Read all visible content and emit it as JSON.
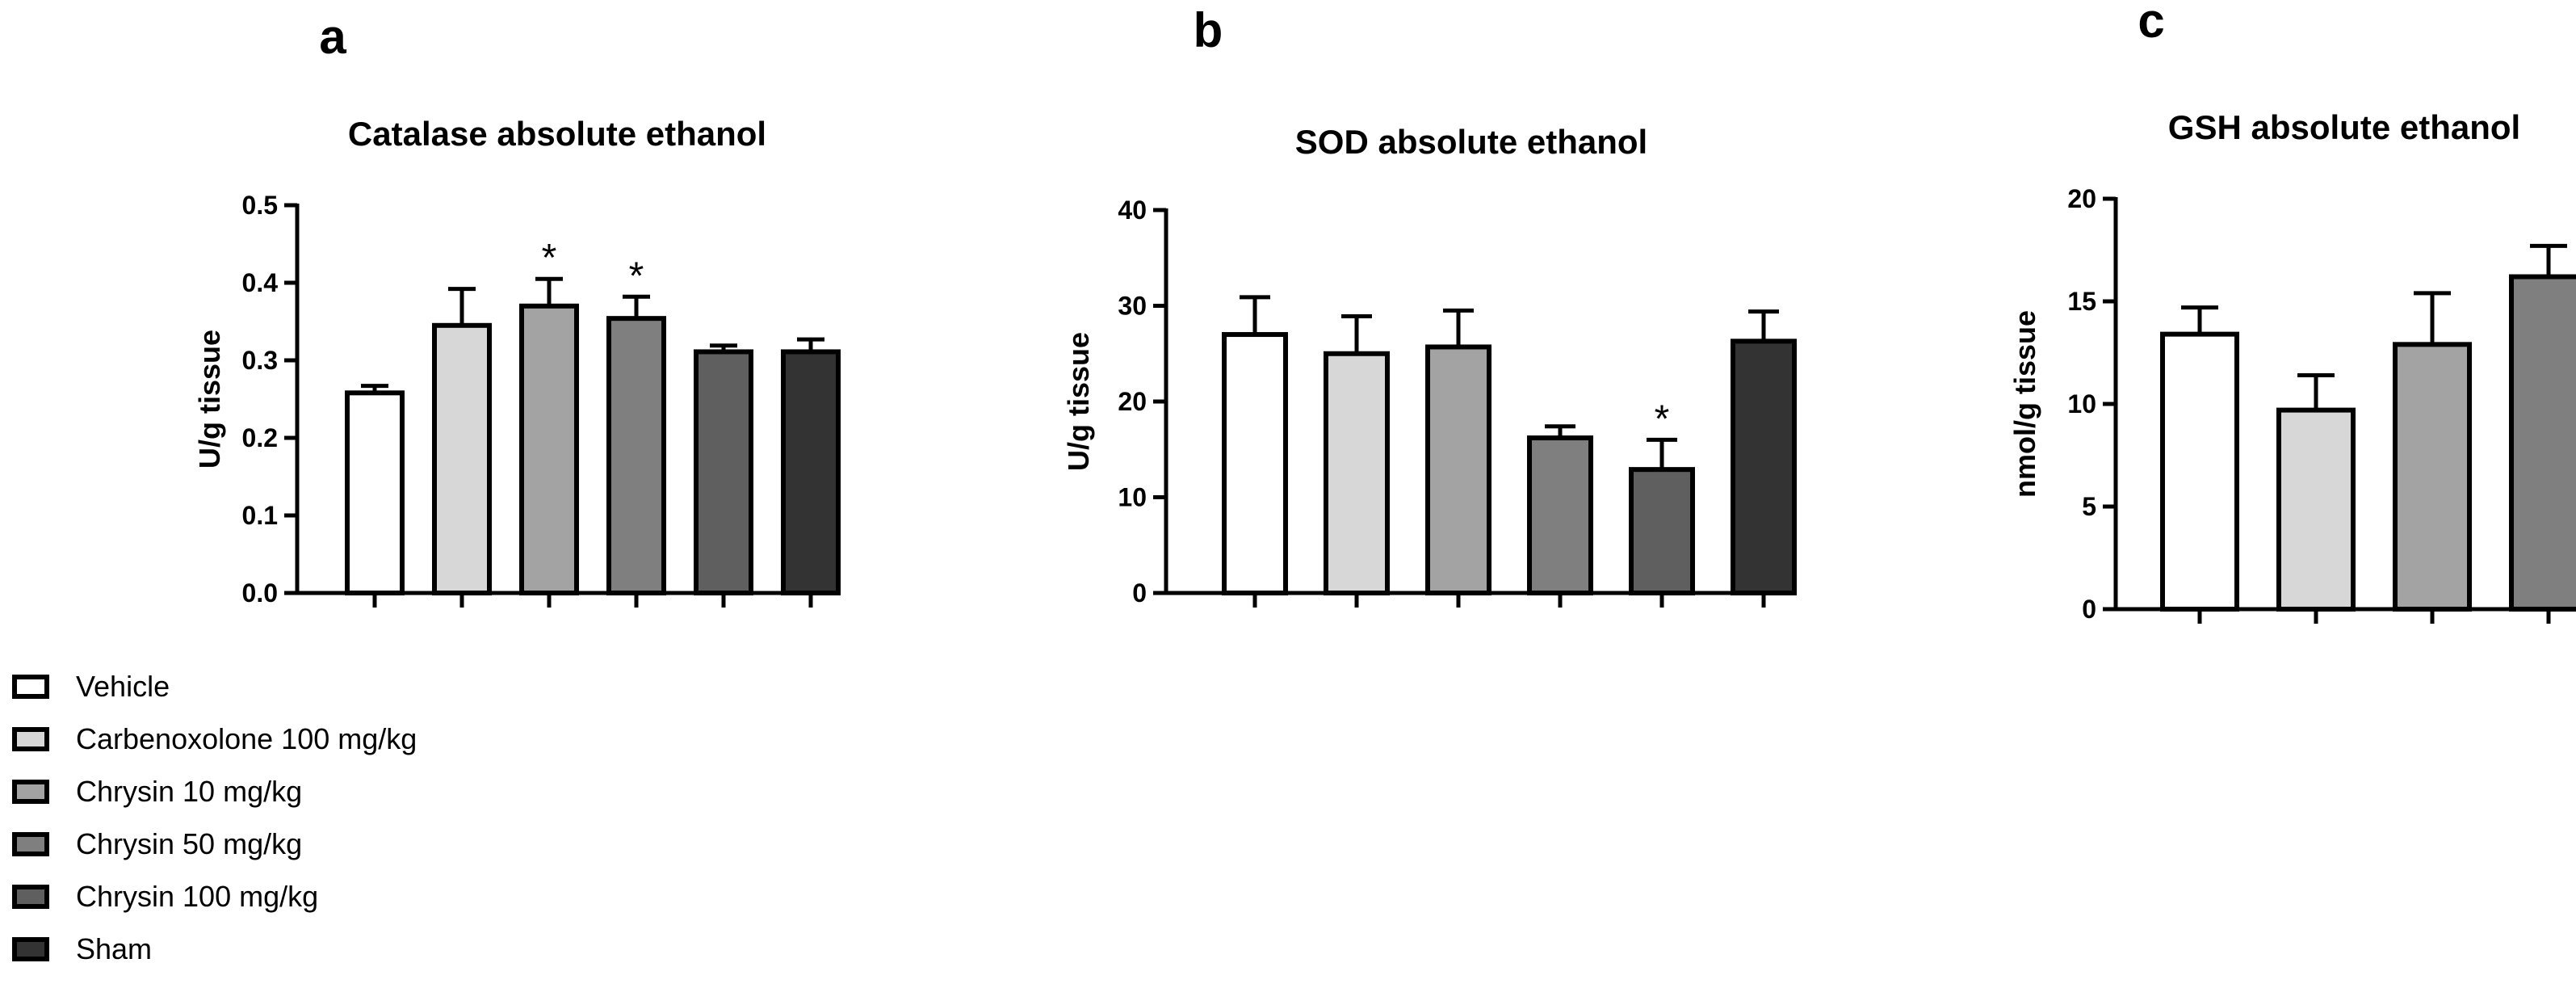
{
  "legend": {
    "entries": [
      {
        "label": "Vehicle",
        "color": "#ffffff"
      },
      {
        "label": "Carbenoxolone 100 mg/kg",
        "color": "#d7d7d7"
      },
      {
        "label": "Chrysin 10 mg/kg",
        "color": "#a3a3a3"
      },
      {
        "label": "Chrysin 50 mg/kg",
        "color": "#7f7f7f"
      },
      {
        "label": "Chrysin 100 mg/kg",
        "color": "#5f5f5f"
      },
      {
        "label": "Sham",
        "color": "#333333"
      }
    ]
  },
  "chart_data": [
    {
      "type": "bar",
      "panel": "a",
      "title": "Catalase absolute ethanol",
      "ylabel": "U/g tissue",
      "xlabel": "",
      "ylim": [
        0,
        0.5
      ],
      "yticks": [
        "0.0",
        "0.1",
        "0.2",
        "0.3",
        "0.4",
        "0.5"
      ],
      "categories": [
        "Vehicle",
        "Carbenoxolone 100 mg/kg",
        "Chrysin 10 mg/kg",
        "Chrysin 50 mg/kg",
        "Chrysin 100 mg/kg",
        "Sham"
      ],
      "values": [
        0.258,
        0.345,
        0.37,
        0.354,
        0.311,
        0.311
      ],
      "errors": [
        0.009,
        0.047,
        0.035,
        0.028,
        0.008,
        0.016
      ],
      "significance": [
        "",
        "",
        "*",
        "*",
        "",
        ""
      ]
    },
    {
      "type": "bar",
      "panel": "b",
      "title": "SOD absolute ethanol",
      "ylabel": "U/g tissue",
      "xlabel": "",
      "ylim": [
        0,
        40
      ],
      "yticks": [
        "0",
        "10",
        "20",
        "30",
        "40"
      ],
      "categories": [
        "Vehicle",
        "Carbenoxolone 100 mg/kg",
        "Chrysin 10 mg/kg",
        "Chrysin 50 mg/kg",
        "Chrysin 100 mg/kg",
        "Sham"
      ],
      "values": [
        27.0,
        25.0,
        25.7,
        16.2,
        12.9,
        26.3
      ],
      "errors": [
        3.9,
        3.9,
        3.8,
        1.2,
        3.1,
        3.1
      ],
      "significance": [
        "",
        "",
        "",
        "",
        "*",
        ""
      ]
    },
    {
      "type": "bar",
      "panel": "c",
      "title": "GSH absolute ethanol",
      "ylabel": "nmol/g tissue",
      "xlabel": "",
      "ylim": [
        0,
        20
      ],
      "yticks": [
        "0",
        "5",
        "10",
        "15",
        "20"
      ],
      "categories": [
        "Vehicle",
        "Carbenoxolone 100 mg/kg",
        "Chrysin 10 mg/kg",
        "Chrysin 50 mg/kg"
      ],
      "values": [
        13.4,
        9.7,
        12.9,
        16.2
      ],
      "errors": [
        1.3,
        1.7,
        2.5,
        1.5
      ],
      "significance": [
        "",
        "",
        "",
        ""
      ]
    }
  ]
}
